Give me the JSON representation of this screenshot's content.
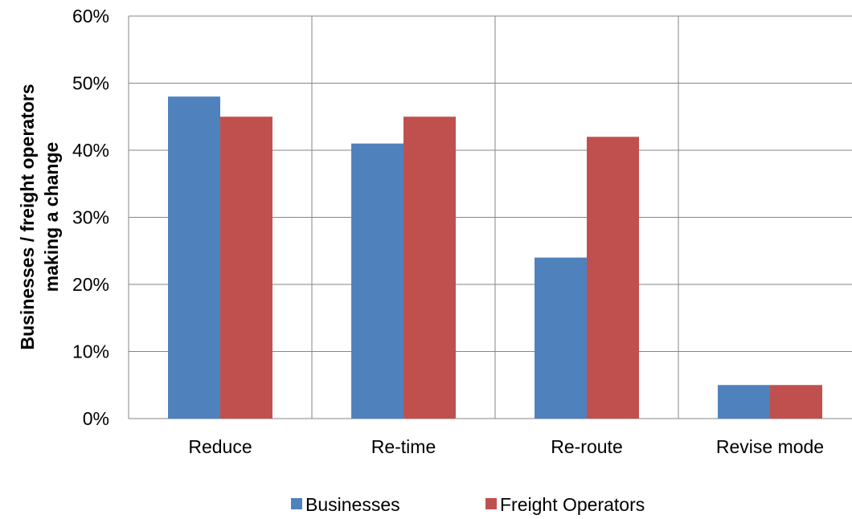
{
  "chart_data": {
    "type": "bar",
    "categories": [
      "Reduce",
      "Re-time",
      "Re-route",
      "Revise mode"
    ],
    "series": [
      {
        "name": "Businesses",
        "color": "#4f81bd",
        "values": [
          0.48,
          0.41,
          0.24,
          0.05
        ]
      },
      {
        "name": "Freight Operators",
        "color": "#c0504d",
        "values": [
          0.45,
          0.45,
          0.42,
          0.05
        ]
      }
    ],
    "ylabel_lines": [
      "Businesses / freight operators",
      "making a change"
    ],
    "ylim": [
      0,
      0.6
    ],
    "yticks": [
      "0%",
      "10%",
      "20%",
      "30%",
      "40%",
      "50%",
      "60%"
    ],
    "grid": true,
    "legend_position": "bottom"
  }
}
